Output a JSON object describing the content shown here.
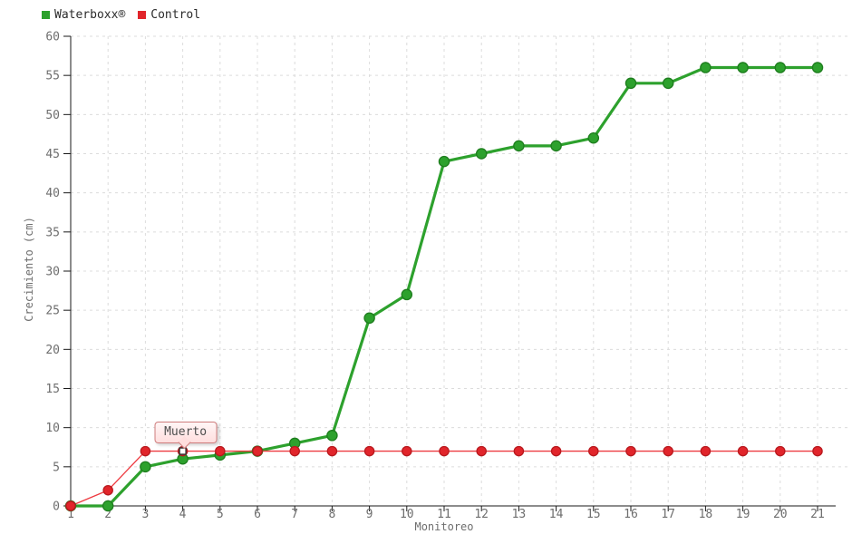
{
  "chart_data": {
    "type": "line",
    "title": "",
    "xlabel": "Monitoreo",
    "ylabel": "Crecimiento (cm)",
    "categories": [
      1,
      2,
      3,
      4,
      5,
      6,
      7,
      8,
      9,
      10,
      11,
      12,
      13,
      14,
      15,
      16,
      17,
      18,
      19,
      20,
      21
    ],
    "y_ticks": [
      0,
      5,
      10,
      15,
      20,
      25,
      30,
      35,
      40,
      45,
      50,
      55,
      60
    ],
    "ylim": [
      0,
      60
    ],
    "grid": "dashed",
    "legend_position": "top-left",
    "series": [
      {
        "name": "Waterboxx®",
        "color": "#2da12d",
        "marker_stroke": "#1e7d1e",
        "line_color": "#2da12d",
        "line_width": 3.2,
        "marker": "circle",
        "values": [
          0,
          0,
          5,
          6,
          6.5,
          7,
          8,
          9,
          24,
          27,
          44,
          45,
          46,
          46,
          47,
          54,
          54,
          56,
          56,
          56,
          56
        ]
      },
      {
        "name": "Control",
        "color": "#e1252b",
        "marker_stroke": "#b8191e",
        "line_color": "#ee3a40",
        "line_width": 1.3,
        "marker": "circle",
        "values": [
          0,
          2,
          7,
          7,
          7,
          7,
          7,
          7,
          7,
          7,
          7,
          7,
          7,
          7,
          7,
          7,
          7,
          7,
          7,
          7,
          7
        ]
      }
    ],
    "annotation": {
      "text": "Muerto",
      "series": "Control",
      "x": 4,
      "y": 7,
      "marker": "white-square"
    }
  },
  "colors": {
    "background": "#ffffff",
    "grid": "#dcdcdc",
    "axis": "#1a1a1a",
    "tick_text": "#6e6e6e",
    "balloon_border": "#cf7d7d",
    "balloon_bg": "#ffdede",
    "balloon_text": "#4d4d4d",
    "annotation_marker_fill": "#ffffff",
    "annotation_marker_stroke": "#333333"
  }
}
